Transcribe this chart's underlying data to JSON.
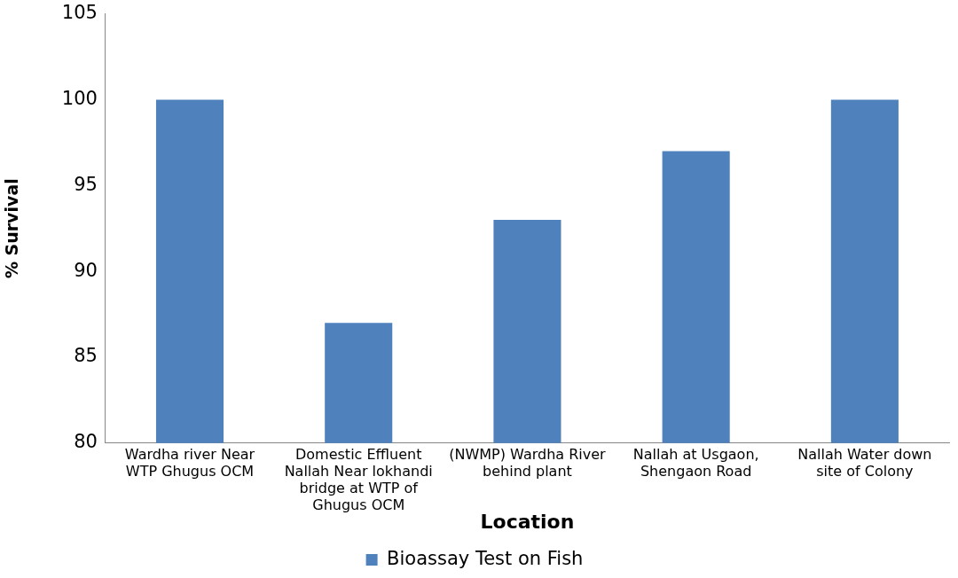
{
  "chart_data": {
    "type": "bar",
    "categories": [
      "Wardha river Near WTP Ghugus OCM",
      "Domestic Effluent Nallah Near lokhandi bridge at WTP of Ghugus OCM",
      "(NWMP) Wardha River behind plant",
      "Nallah at Usgaon, Shengaon Road",
      "Nallah Water down site of Colony"
    ],
    "series": [
      {
        "name": "Bioassay Test on Fish",
        "color": "#4f81bd",
        "values": [
          100,
          87,
          93,
          97,
          100
        ]
      }
    ],
    "xlabel": "Location",
    "ylabel": "% Survival",
    "ylim": [
      80,
      105
    ],
    "yticks": [
      80,
      85,
      90,
      95,
      100,
      105
    ],
    "grid": false,
    "legend": "bottom"
  }
}
